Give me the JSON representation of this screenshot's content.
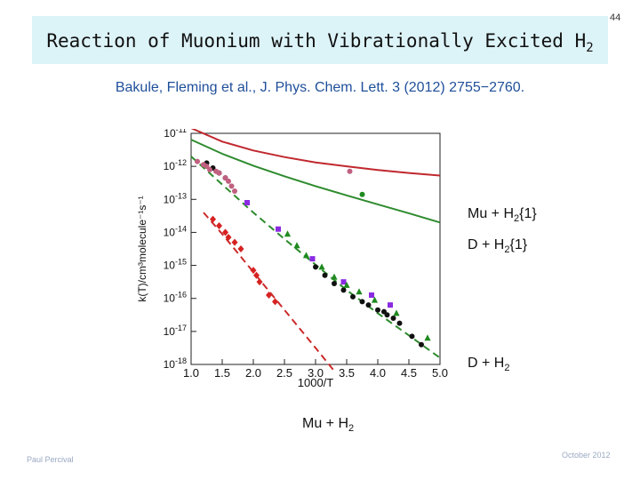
{
  "slide": {
    "title_main": "Reaction of Muonium with Vibrationally Excited H",
    "title_sub": "2",
    "page_number": "44",
    "citation": "Bakule, Fleming et al., J. Phys. Chem. Lett. 3 (2012) 2755−2760.",
    "footer_left": "Paul Percival",
    "footer_right": "October 2012"
  },
  "labels": {
    "mu_h2_v1": {
      "pre": "Mu + H",
      "sub": "2",
      "post": "{1}"
    },
    "d_h2_v1": {
      "pre": "D + H",
      "sub": "2",
      "post": "{1}"
    },
    "d_h2": {
      "pre": "D + H",
      "sub": "2"
    },
    "mu_h2": {
      "pre": "Mu + H",
      "sub": "2"
    }
  },
  "chart_data": {
    "type": "scatter",
    "xlabel": "1000/T",
    "ylabel": "k(T)/cm³molecule⁻¹s⁻¹",
    "xlim": [
      1.0,
      5.0
    ],
    "ylim_log10": [
      -18,
      -11
    ],
    "x_ticks": [
      "1.0",
      "1.5",
      "2.0",
      "2.5",
      "3.0",
      "3.5",
      "4.0",
      "4.5",
      "5.0"
    ],
    "y_ticks": [
      {
        "base": "10",
        "exp": "-11"
      },
      {
        "base": "10",
        "exp": "-12"
      },
      {
        "base": "10",
        "exp": "-13"
      },
      {
        "base": "10",
        "exp": "-14"
      },
      {
        "base": "10",
        "exp": "-15"
      },
      {
        "base": "10",
        "exp": "-16"
      },
      {
        "base": "10",
        "exp": "-17"
      },
      {
        "base": "10",
        "exp": "-18"
      }
    ],
    "y_tick_values_log10": [
      -11,
      -12,
      -13,
      -14,
      -15,
      -16,
      -17,
      -18
    ],
    "colors": {
      "mu_v1": "#c0282e",
      "d_v1": "#2e8b2e",
      "d_ground": "#2e8b2e",
      "mu_ground": "#cc2a2a",
      "black_points": "#111111",
      "purple_points": "#8a2be2",
      "green_points": "#1e8a1e",
      "red_points": "#d62222",
      "pink_points": "#c06080"
    },
    "curves": [
      {
        "name": "Mu + H2{1} theory",
        "color_key": "mu_v1",
        "dash": "solid",
        "x": [
          1.0,
          1.5,
          2.0,
          2.5,
          3.0,
          3.5,
          4.0,
          4.5,
          5.0
        ],
        "y": [
          -10.84,
          -11.25,
          -11.52,
          -11.72,
          -11.88,
          -12.0,
          -12.11,
          -12.2,
          -12.28
        ]
      },
      {
        "name": "D + H2{1} theory",
        "color_key": "d_v1",
        "dash": "solid",
        "x": [
          1.0,
          1.5,
          2.0,
          2.5,
          3.0,
          3.5,
          4.0,
          4.5,
          5.0
        ],
        "y": [
          -11.19,
          -11.62,
          -11.98,
          -12.3,
          -12.6,
          -12.88,
          -13.15,
          -13.42,
          -13.7
        ]
      },
      {
        "name": "D + H2 fit",
        "color_key": "d_ground",
        "dash": "dashed",
        "x": [
          1.0,
          1.5,
          2.0,
          2.5,
          3.0,
          3.5,
          4.0,
          4.5,
          5.0
        ],
        "y": [
          -11.7,
          -12.55,
          -13.4,
          -14.2,
          -14.98,
          -15.75,
          -16.45,
          -17.12,
          -17.8
        ]
      },
      {
        "name": "Mu + H2 fit",
        "color_key": "mu_ground",
        "dash": "dashed",
        "x": [
          1.2,
          1.5,
          2.0,
          2.5,
          3.0,
          3.3
        ],
        "y": [
          -13.4,
          -14.05,
          -15.2,
          -16.35,
          -17.5,
          -18.2
        ]
      }
    ],
    "points": [
      {
        "series": "Mu + H2{1} data",
        "color_key": "pink_points",
        "marker": "circle",
        "x": [
          3.55
        ],
        "y": [
          -12.15
        ]
      },
      {
        "series": "D + H2{1} data",
        "color_key": "green_points",
        "marker": "circle",
        "x": [
          3.75
        ],
        "y": [
          -12.85
        ]
      },
      {
        "series": "D + H2 black",
        "color_key": "black_points",
        "marker": "circle",
        "x": [
          1.25,
          1.35,
          1.45,
          1.55,
          3.0,
          3.15,
          3.3,
          3.45,
          3.6,
          3.75,
          3.85,
          4.0,
          4.1,
          4.15,
          4.25,
          4.35,
          4.55,
          4.7
        ],
        "y": [
          -11.9,
          -12.05,
          -12.2,
          -12.35,
          -15.05,
          -15.3,
          -15.55,
          -15.75,
          -15.95,
          -16.1,
          -16.2,
          -16.35,
          -16.4,
          -16.5,
          -16.6,
          -16.75,
          -17.15,
          -17.4
        ]
      },
      {
        "series": "D + H2 purple",
        "color_key": "purple_points",
        "marker": "square",
        "x": [
          1.9,
          2.4,
          2.95,
          3.45,
          3.9,
          4.2
        ],
        "y": [
          -13.1,
          -13.9,
          -14.8,
          -15.5,
          -15.9,
          -16.2
        ]
      },
      {
        "series": "D + H2 green",
        "color_key": "green_points",
        "marker": "triangle",
        "x": [
          2.55,
          2.7,
          2.85,
          3.1,
          3.3,
          3.5,
          3.7,
          3.95,
          4.3,
          4.8
        ],
        "y": [
          -14.05,
          -14.4,
          -14.7,
          -15.05,
          -15.35,
          -15.6,
          -15.8,
          -16.05,
          -16.45,
          -17.2
        ]
      },
      {
        "series": "Mu + H2 red",
        "color_key": "red_points",
        "marker": "diamond",
        "x": [
          1.35,
          1.45,
          1.55,
          1.6,
          1.7,
          1.8,
          2.0,
          2.05,
          2.1,
          2.25,
          2.35
        ],
        "y": [
          -13.6,
          -13.8,
          -14.0,
          -14.15,
          -14.3,
          -14.5,
          -15.15,
          -15.3,
          -15.5,
          -15.9,
          -16.1
        ]
      },
      {
        "series": "Mu + H2{1} pink",
        "color_key": "pink_points",
        "marker": "circle",
        "x": [
          1.1,
          1.2,
          1.25,
          1.3,
          1.4,
          1.45,
          1.55,
          1.6,
          1.65,
          1.7
        ],
        "y": [
          -11.85,
          -11.95,
          -12.0,
          -12.1,
          -12.15,
          -12.2,
          -12.35,
          -12.45,
          -12.6,
          -12.75
        ]
      }
    ]
  }
}
